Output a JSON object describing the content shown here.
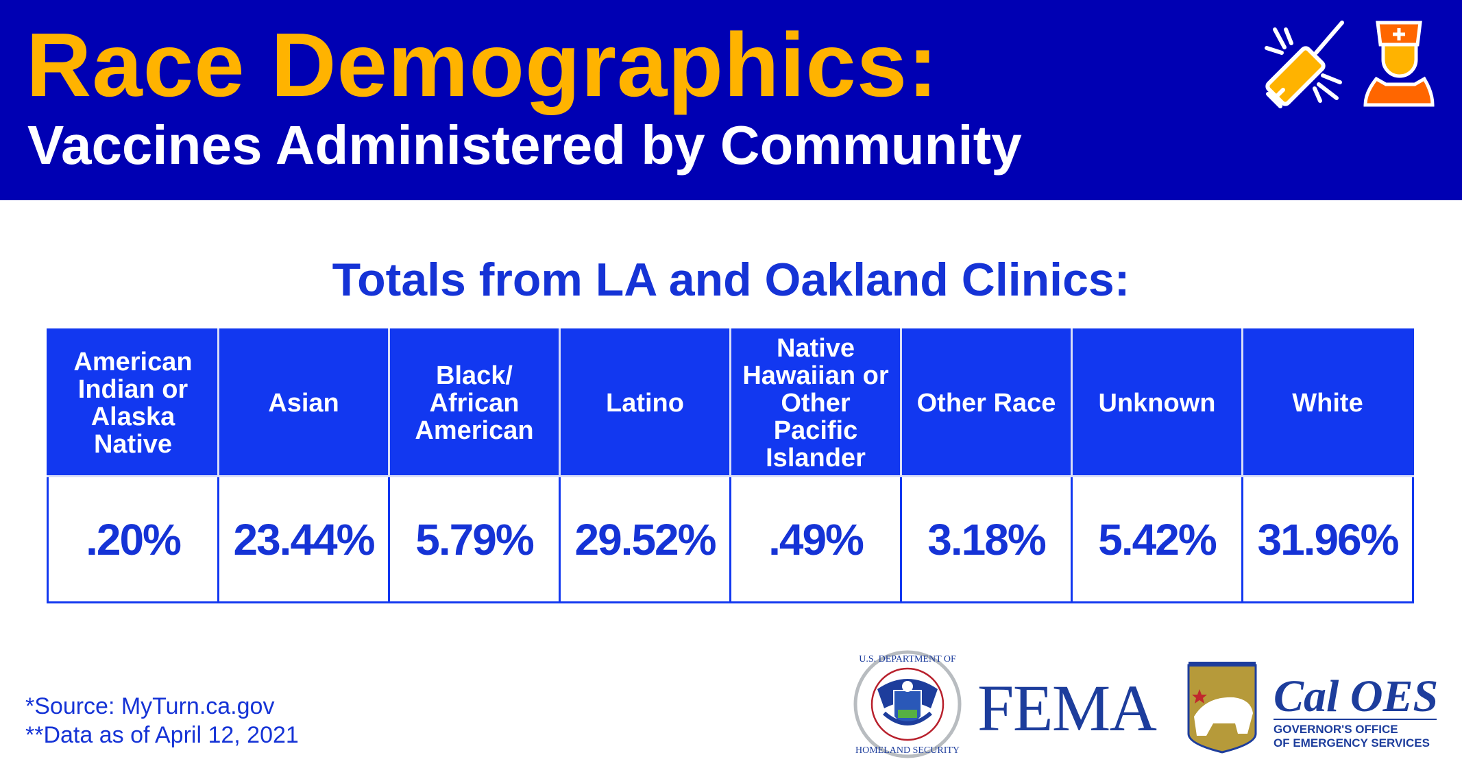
{
  "header": {
    "title": "Race Demographics:",
    "subtitle": "Vaccines Administered by Community",
    "icons": [
      "syringe-icon",
      "nurse-icon"
    ]
  },
  "subheading": "Totals from LA and Oakland Clinics:",
  "table": {
    "columns": [
      "American Indian or Alaska Native",
      "Asian",
      "Black/ African American",
      "Latino",
      "Native Hawaiian or Other Pacific Islander",
      "Other Race",
      "Unknown",
      "White"
    ],
    "values": [
      ".20%",
      "23.44%",
      "5.79%",
      "29.52%",
      ".49%",
      "3.18%",
      "5.42%",
      "31.96%"
    ]
  },
  "footer": {
    "source": "*Source: MyTurn.ca.gov",
    "data_date": "**Data as of April 12, 2021"
  },
  "logos": {
    "dhs_seal": "U.S. Department of Homeland Security",
    "fema": "FEMA",
    "cal_oes": "Cal OES",
    "cal_oes_line1": "GOVERNOR'S OFFICE",
    "cal_oes_line2": "OF EMERGENCY SERVICES"
  },
  "colors": {
    "header_bg": "#0000B3",
    "title": "#FFB300",
    "accent": "#1238F0",
    "text_blue": "#1533D6"
  }
}
